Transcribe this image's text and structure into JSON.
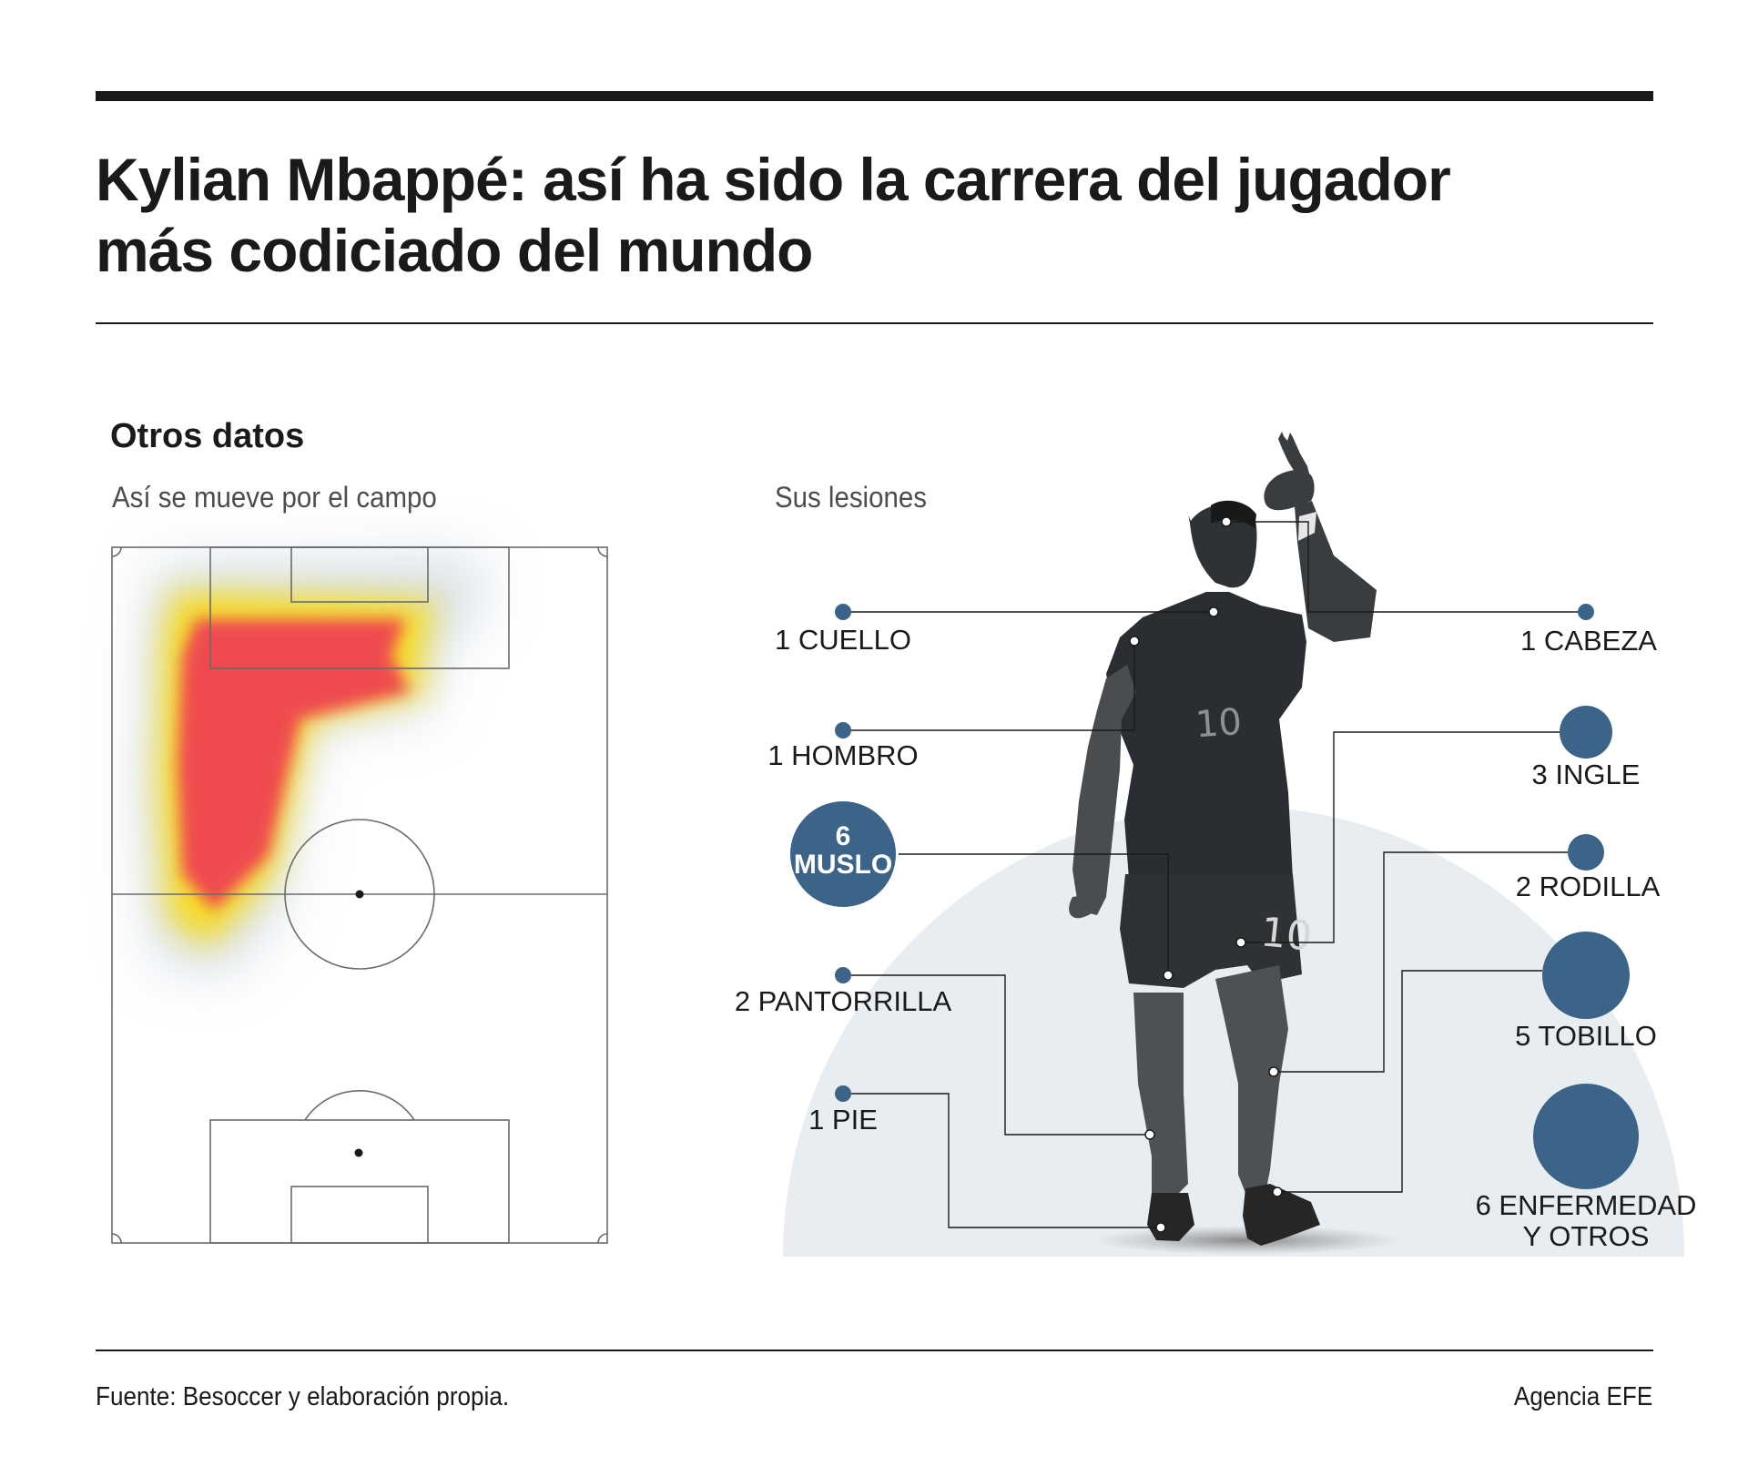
{
  "header": {
    "title_line1": "Kylian Mbappé: así ha sido la carrera del jugador",
    "title_line2": "más codiciado del mundo"
  },
  "section": {
    "title": "Otros datos"
  },
  "heatmap": {
    "subtitle": "Así se mueve por el campo"
  },
  "injuries": {
    "subtitle": "Sus lesiones",
    "accent_color": "#3b6488",
    "items": [
      {
        "id": "cuello",
        "count": "1",
        "name": "CUELLO",
        "label": "1 CUELLO"
      },
      {
        "id": "hombro",
        "count": "1",
        "name": "HOMBRO",
        "label": "1 HOMBRO"
      },
      {
        "id": "muslo",
        "count": "6",
        "name": "MUSLO",
        "label": "6 MUSLO"
      },
      {
        "id": "pantorrilla",
        "count": "2",
        "name": "PANTORRILLA",
        "label": "2 PANTORRILLA"
      },
      {
        "id": "pie",
        "count": "1",
        "name": "PIE",
        "label": "1 PIE"
      },
      {
        "id": "cabeza",
        "count": "1",
        "name": "CABEZA",
        "label": "1 CABEZA"
      },
      {
        "id": "ingle",
        "count": "3",
        "name": "INGLE",
        "label": "3 INGLE"
      },
      {
        "id": "rodilla",
        "count": "2",
        "name": "RODILLA",
        "label": "2 RODILLA"
      },
      {
        "id": "tobillo",
        "count": "5",
        "name": "TOBILLO",
        "label": "5 TOBILLO"
      },
      {
        "id": "enfermedad",
        "count": "6",
        "name": "ENFERMEDAD Y OTROS",
        "label_line1": "6 ENFERMEDAD",
        "label_line2": "Y OTROS"
      }
    ]
  },
  "figure": {
    "jersey_number": "10"
  },
  "footer": {
    "source": "Fuente: Besoccer y elaboración propia.",
    "credit": "Agencia EFE"
  }
}
